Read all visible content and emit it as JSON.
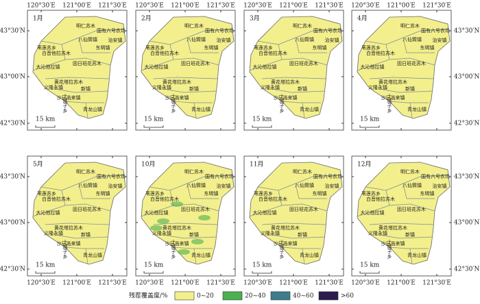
{
  "panels": [
    {
      "month": "1月"
    },
    {
      "month": "2月"
    },
    {
      "month": "3月"
    },
    {
      "month": "4月"
    },
    {
      "month": "5月"
    },
    {
      "month": "10月"
    },
    {
      "month": "11月"
    },
    {
      "month": "12月"
    }
  ],
  "towns": [
    {
      "name": "明仁苏木"
    },
    {
      "name": "国有六号农场"
    },
    {
      "name": "八仙筒镇"
    },
    {
      "name": "治安镇"
    },
    {
      "name": "东明镇"
    },
    {
      "name": "苇莲苏乡"
    },
    {
      "name": "白音他拉苏木"
    },
    {
      "name": "固日班花苏木"
    },
    {
      "name": "大沁他拉镇"
    },
    {
      "name": "黄花塔拉苏木"
    },
    {
      "name": "义隆永镇"
    },
    {
      "name": "新镇"
    },
    {
      "name": "沙日浩来镇"
    },
    {
      "name": "土城子乡"
    },
    {
      "name": "青龙山镇"
    }
  ],
  "lon_labels": [
    "120°30′E",
    "121°00′E",
    "121°30′E"
  ],
  "lat_labels": [
    "43°30′N",
    "43°00′N",
    "42°30′N"
  ],
  "scale_bar": "15 km",
  "legend": {
    "title": "残茬覆盖度/%",
    "items": [
      {
        "label": "0~20",
        "color": "#f3ef8c"
      },
      {
        "label": "20~40",
        "color": "#4caf50"
      },
      {
        "label": "40~60",
        "color": "#3f7c8c"
      },
      {
        "label": ">60",
        "color": "#2a1c4c"
      }
    ]
  }
}
